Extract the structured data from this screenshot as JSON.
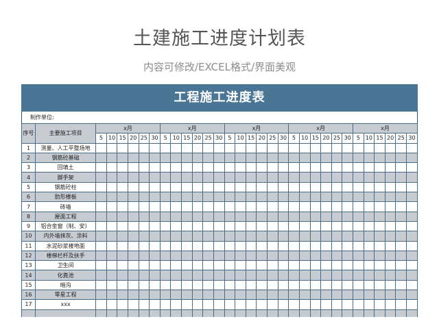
{
  "page": {
    "title": "土建施工进度计划表",
    "subtitle": "内容可修改/EXCEL格式/界面美观"
  },
  "sheet": {
    "banner": "工程施工进度表",
    "unit_label": "制作单位:",
    "col_index": "序号",
    "col_item": "主要施工项目",
    "months": [
      "x月",
      "x月",
      "x月",
      "x月",
      "x月"
    ],
    "days": [
      "5",
      "10",
      "15",
      "20",
      "25",
      "30"
    ],
    "rows": [
      {
        "no": "1",
        "item": "测量、人工平整场地"
      },
      {
        "no": "2",
        "item": "钢筋砼基础"
      },
      {
        "no": "3",
        "item": "回填土"
      },
      {
        "no": "4",
        "item": "脚手架"
      },
      {
        "no": "5",
        "item": "钢筋砼柱"
      },
      {
        "no": "6",
        "item": "肋形楼板"
      },
      {
        "no": "7",
        "item": "砖墙"
      },
      {
        "no": "8",
        "item": "屋面工程"
      },
      {
        "no": "9",
        "item": "铝合金窗（制、安）"
      },
      {
        "no": "10",
        "item": "内外墙抹灰、涂料"
      },
      {
        "no": "11",
        "item": "水泥砂浆楼地面"
      },
      {
        "no": "12",
        "item": "楼梯栏杆及扶手"
      },
      {
        "no": "13",
        "item": "卫生间"
      },
      {
        "no": "14",
        "item": "化粪池"
      },
      {
        "no": "15",
        "item": "暗沟"
      },
      {
        "no": "16",
        "item": "零星工程"
      },
      {
        "no": "17",
        "item": "xxx"
      }
    ]
  },
  "colors": {
    "banner": "#4a7595",
    "alt_row": "#c6ccd2",
    "grid_line": "#4a6b86"
  }
}
